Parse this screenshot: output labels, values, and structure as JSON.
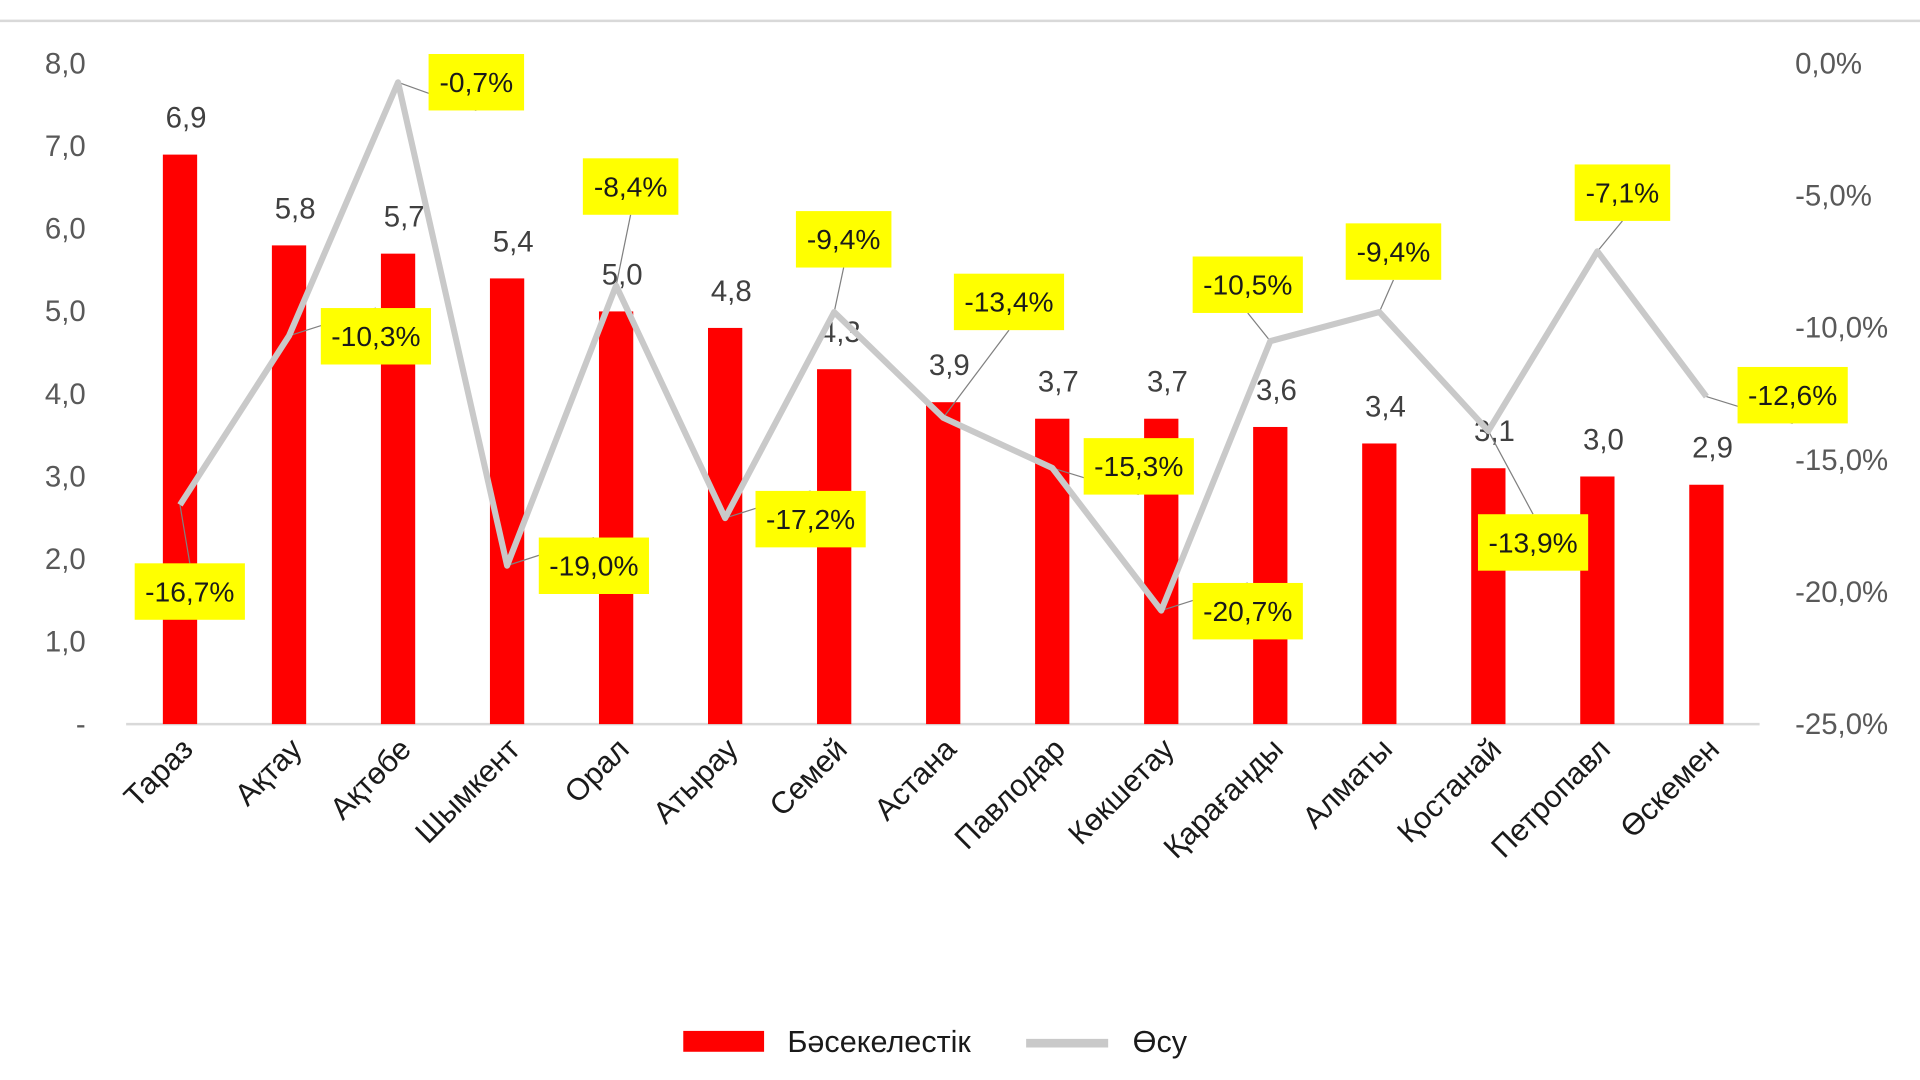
{
  "chart_data": {
    "type": "bar",
    "title": "",
    "categories": [
      "Тараз",
      "Ақтау",
      "Ақтөбе",
      "Шымкент",
      "Орал",
      "Атырау",
      "Семей",
      "Астана",
      "Павлодар",
      "Көкшетау",
      "Қарағанды",
      "Алматы",
      "Қостанай",
      "Петропавл",
      "Өскемен"
    ],
    "series": [
      {
        "name": "Бәсекелестік",
        "type": "bar",
        "axis": "left",
        "color": "#ff0000",
        "values": [
          6.9,
          5.8,
          5.7,
          5.4,
          5.0,
          4.8,
          4.3,
          3.9,
          3.7,
          3.7,
          3.6,
          3.4,
          3.1,
          3.0,
          2.9
        ],
        "labels": [
          "6,9",
          "5,8",
          "5,7",
          "5,4",
          "5,0",
          "4,8",
          "4,3",
          "3,9",
          "3,7",
          "3,7",
          "3,6",
          "3,4",
          "3,1",
          "3,0",
          "2,9"
        ]
      },
      {
        "name": "Өсу",
        "type": "line",
        "axis": "right",
        "color": "#c9c9c9",
        "values": [
          -16.7,
          -10.3,
          -0.7,
          -19.0,
          -8.4,
          -17.2,
          -9.4,
          -13.4,
          -15.3,
          -20.7,
          -10.5,
          -9.4,
          -13.9,
          -7.1,
          -12.6
        ],
        "labels": [
          "-16,7%",
          "-10,3%",
          "-0,7%",
          "-19,0%",
          "-8,4%",
          "-17,2%",
          "-9,4%",
          "-13,4%",
          "-15,3%",
          "-20,7%",
          "-10,5%",
          "-9,4%",
          "-13,9%",
          "-7,1%",
          "-12,6%"
        ],
        "label_bg": "#ffff00"
      }
    ],
    "y_left": {
      "lim": [
        0,
        8
      ],
      "ticks": [
        "-",
        "1,0",
        "2,0",
        "3,0",
        "4,0",
        "5,0",
        "6,0",
        "7,0",
        "8,0"
      ]
    },
    "y_right": {
      "lim": [
        -25,
        0
      ],
      "ticks": [
        "-25,0%",
        "-20,0%",
        "-15,0%",
        "-10,0%",
        "-5,0%",
        "0,0%"
      ]
    },
    "xlabel": "",
    "ylabel": "",
    "grid": false,
    "legend": {
      "placement": "bottom",
      "items": [
        "Бәсекелестік",
        "Өсу"
      ]
    }
  }
}
